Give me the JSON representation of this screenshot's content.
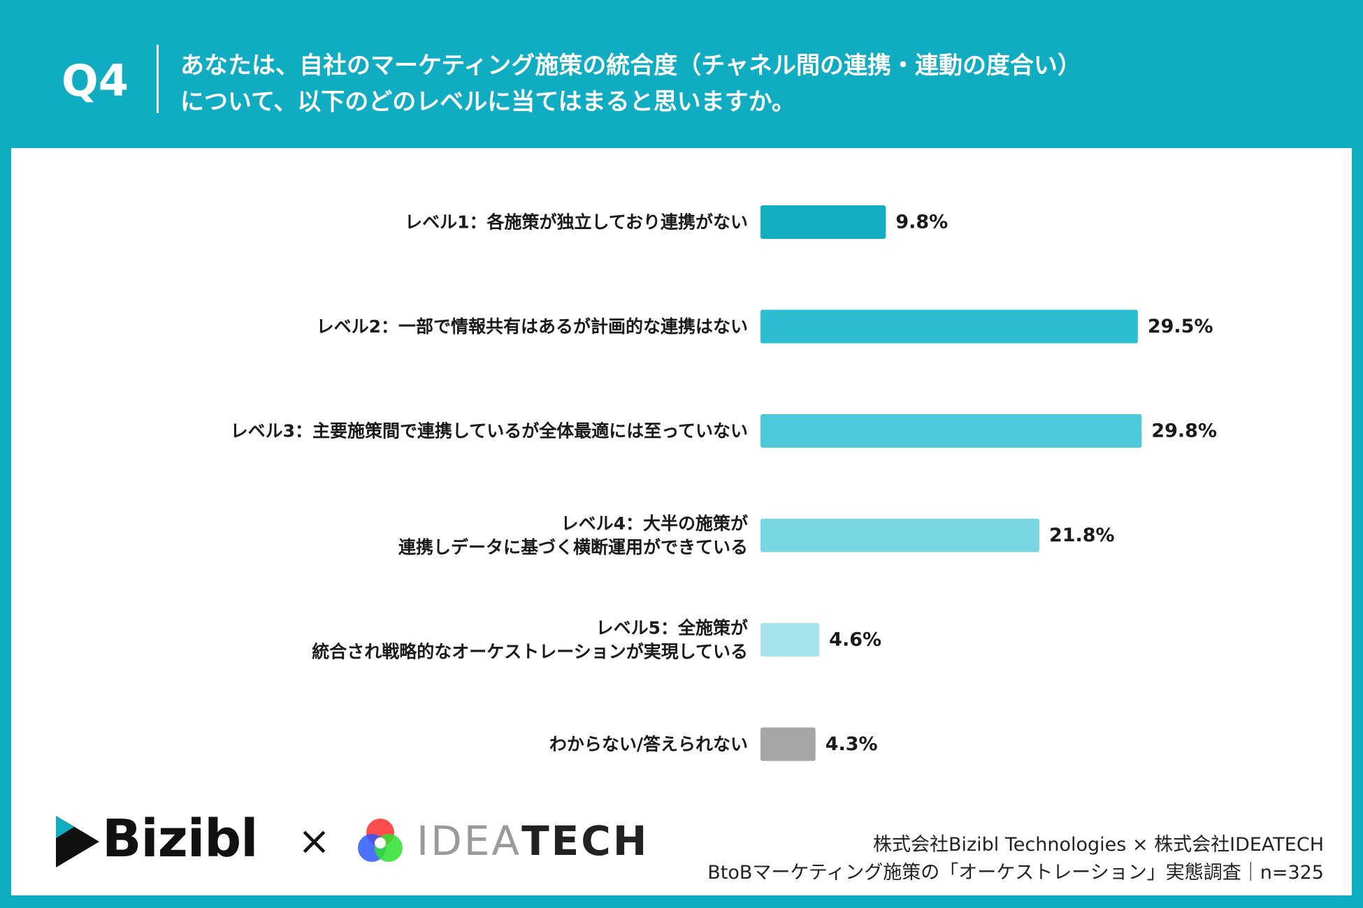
{
  "header": {
    "q_label": "Q4",
    "question_line1": "あなたは、自社のマーケティング施策の統合度（チャネル間の連携・連動の度合い）",
    "question_line2": "について、以下のどのレベルに当てはまると思いますか。"
  },
  "chart_data": {
    "type": "bar",
    "orientation": "horizontal",
    "categories": [
      [
        "レベル1：各施策が独立しており連携がない"
      ],
      [
        "レベル2：一部で情報共有はあるが計画的な連携はない"
      ],
      [
        "レベル3：主要施策間で連携しているが全体最適には至っていない"
      ],
      [
        "レベル4：大半の施策が",
        "連携しデータに基づく横断運用ができている"
      ],
      [
        "レベル5：全施策が",
        "統合され戦略的なオーケストレーションが実現している"
      ],
      [
        "わからない/答えられない"
      ]
    ],
    "values": [
      9.8,
      29.5,
      29.8,
      21.8,
      4.6,
      4.3
    ],
    "value_labels": [
      "9.8%",
      "29.5%",
      "29.8%",
      "21.8%",
      "4.6%",
      "4.3%"
    ],
    "colors": [
      "#12adc1",
      "#2bbdd0",
      "#4ec9da",
      "#78d5e2",
      "#a7e3ec",
      "#a6a6a6"
    ],
    "unit": "%",
    "xlim": [
      0,
      30
    ],
    "grid": false,
    "legend": "none"
  },
  "footer": {
    "bizibl_logo_text": "Bizibl",
    "times_symbol": "×",
    "ideatech_logo_light": "IDEA",
    "ideatech_logo_dark": "TECH",
    "credit_line1": "株式会社Bizibl Technologies × 株式会社IDEATECH",
    "credit_line2": "BtoBマーケティング施策の「オーケストレーション」実態調査｜n=325"
  },
  "colors": {
    "frame": "#10adc2",
    "panel": "#ffffff",
    "text": "#1a1a1a"
  }
}
